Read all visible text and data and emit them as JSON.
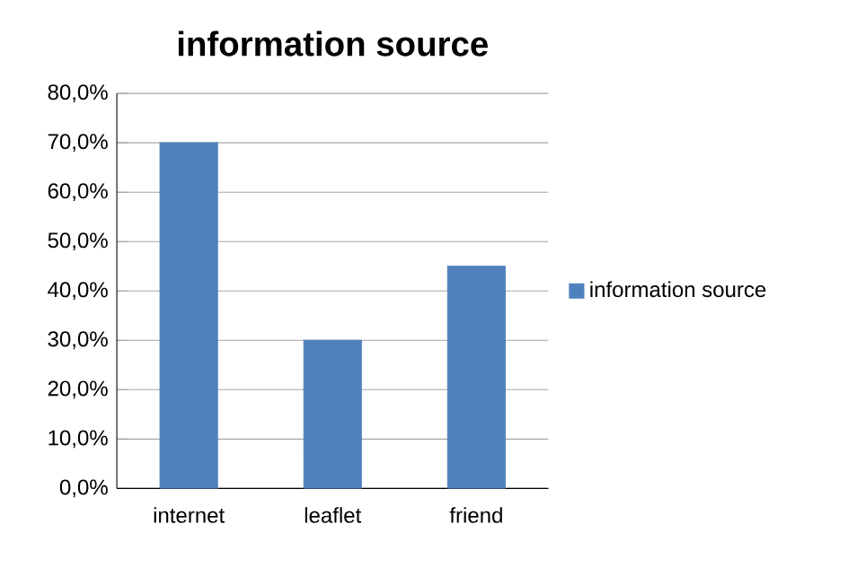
{
  "chart_data": {
    "type": "bar",
    "title": "information source",
    "categories": [
      "internet",
      "leaflet",
      "friend"
    ],
    "series": [
      {
        "name": "information source",
        "color": "#4f81bd",
        "values": [
          70,
          30,
          45
        ]
      }
    ],
    "ylim": [
      0,
      80
    ],
    "yticks": [
      {
        "value": 0,
        "label": "0,0%"
      },
      {
        "value": 10,
        "label": "10,0%"
      },
      {
        "value": 20,
        "label": "20,0%"
      },
      {
        "value": 30,
        "label": "30,0%"
      },
      {
        "value": 40,
        "label": "40,0%"
      },
      {
        "value": 50,
        "label": "50,0%"
      },
      {
        "value": 60,
        "label": "60,0%"
      },
      {
        "value": 70,
        "label": "70,0%"
      },
      {
        "value": 80,
        "label": "80,0%"
      }
    ],
    "grid": "y",
    "legend": "right"
  }
}
